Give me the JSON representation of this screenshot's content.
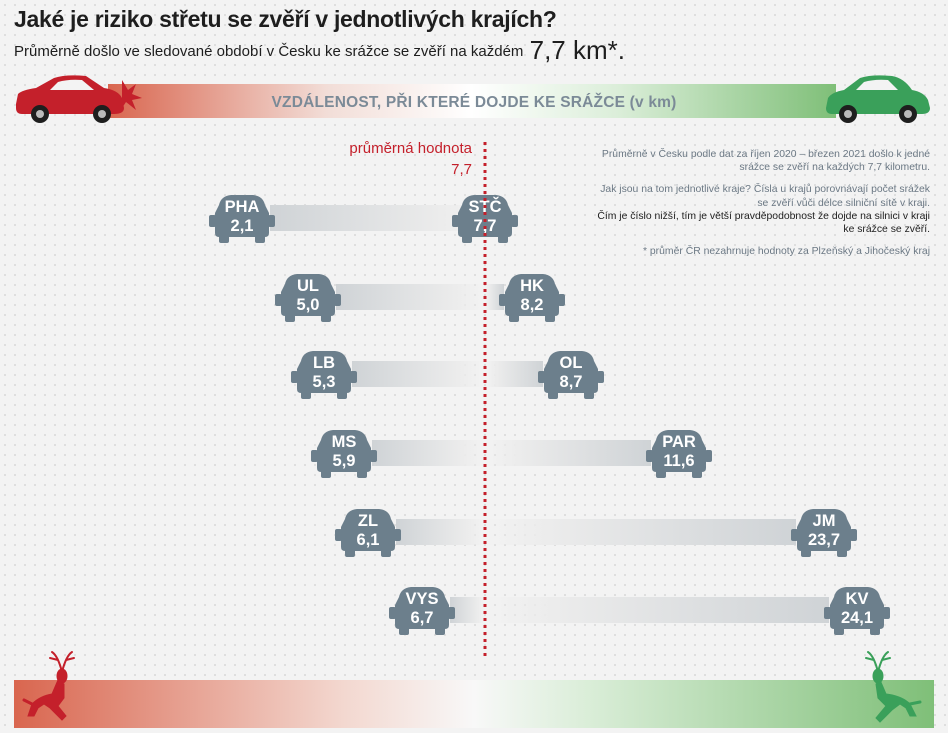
{
  "header": {
    "title": "Jaké je riziko střetu se zvěří v jednotlivých krajích?",
    "subtitle_text": "Průměrně došlo ve sledované období v Česku ke srážce se zvěří na každém",
    "subtitle_value": "7,7 km*.",
    "axis_label": "VZDÁLENOST, PŘI KTERÉ DOJDE KE SRÁŽCE (v km)"
  },
  "average": {
    "label": "průměrná hodnota",
    "value_text": "7,7"
  },
  "notes": {
    "p1": "Průměrně v Česku podle dat za říjen 2020 – březen 2021 došlo k jedné srážce se zvěří na každých 7,7 kilometru.",
    "p2_intro": "Jak jsou na tom jednotlivé kraje? Čísla u krajů porovnávají počet srážek se zvěří vůči délce silniční sítě v kraji.",
    "p2_bold": "Čím je číslo nižší, tím je větší pravděpodobnost že dojde na silnici v kraji ke srážce se zvěří.",
    "p3": "* průměr ČR nezahrnuje hodnoty za Plzeňský a Jihočeský kraj"
  },
  "colors": {
    "accent_red": "#c4202b",
    "accent_green": "#3aa05a",
    "car_gray": "#6c7f8c",
    "header_gray": "#7b8a97"
  },
  "icons": [
    "red-car-icon",
    "green-car-icon",
    "red-deer-icon",
    "green-deer-icon",
    "region-car-badge-icon"
  ],
  "chart_data": {
    "type": "bar",
    "title": "Jaké je riziko střetu se zvěří v jednotlivých krajích?",
    "ylabel": "VZDÁLENOST, PŘI KTERÉ DOJDE KE SRÁŽCE (v km)",
    "reference_value": 7.7,
    "categories": [
      "PHA",
      "UL",
      "LB",
      "MS",
      "ZL",
      "VYS",
      "STČ",
      "HK",
      "OL",
      "PAR",
      "JM",
      "KV"
    ],
    "values": [
      2.1,
      5.0,
      5.3,
      5.9,
      6.1,
      6.7,
      7.7,
      8.2,
      8.7,
      11.6,
      23.7,
      24.1
    ],
    "value_labels": [
      "2,1",
      "5,0",
      "5,3",
      "5,9",
      "6,1",
      "6,7",
      "7,7",
      "8,2",
      "8,7",
      "11,6",
      "23,7",
      "24,1"
    ]
  }
}
